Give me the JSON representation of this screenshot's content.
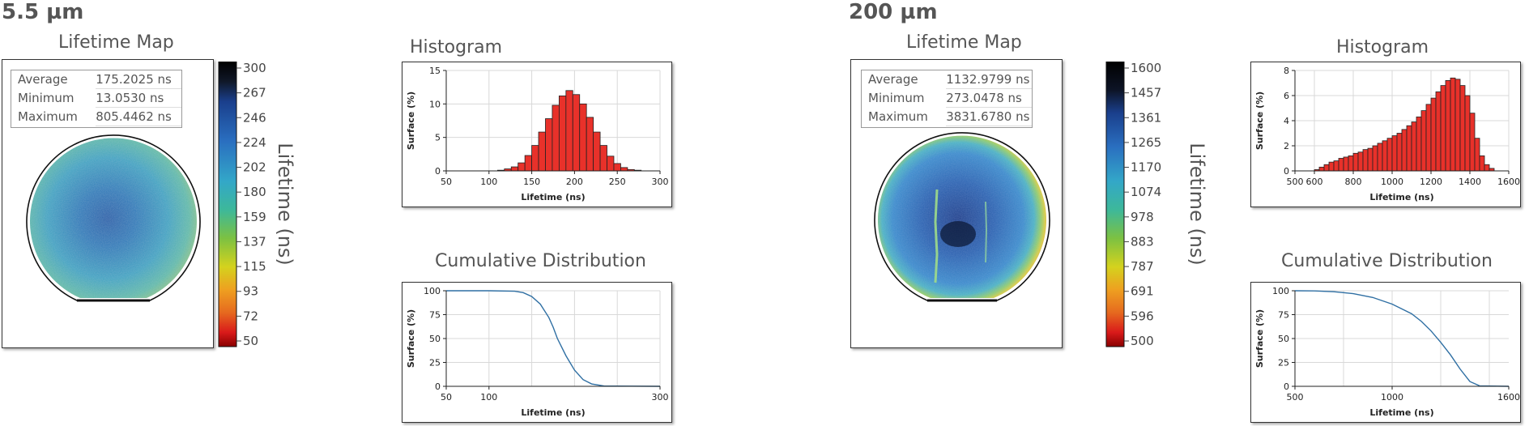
{
  "panels": [
    {
      "sample": "5.5 µm",
      "map_title": "Lifetime Map",
      "stats": [
        {
          "label": "Average",
          "value": "175.2025 ns"
        },
        {
          "label": "Minimum",
          "value": "13.0530 ns"
        },
        {
          "label": "Maximum",
          "value": "805.4462 ns"
        }
      ],
      "colorbar": {
        "ticks": [
          "300",
          "267",
          "246",
          "224",
          "202",
          "180",
          "159",
          "137",
          "115",
          "93",
          "72",
          "50"
        ],
        "label": "Lifetime (ns)"
      },
      "histogram_title": "Histogram",
      "cumulative_title": "Cumulative Distribution"
    },
    {
      "sample": "200 µm",
      "map_title": "Lifetime Map",
      "stats": [
        {
          "label": "Average",
          "value": "1132.9799 ns"
        },
        {
          "label": "Minimum",
          "value": "273.0478 ns"
        },
        {
          "label": "Maximum",
          "value": "3831.6780 ns"
        }
      ],
      "colorbar": {
        "ticks": [
          "1600",
          "1457",
          "1361",
          "1265",
          "1170",
          "1074",
          "978",
          "883",
          "787",
          "691",
          "596",
          "500"
        ],
        "label": "Lifetime (ns)"
      },
      "histogram_title": "Histogram",
      "cumulative_title": "Cumulative Distribution"
    }
  ],
  "chart_data": [
    {
      "type": "bar",
      "id": "hist1",
      "xlabel": "Lifetime (ns)",
      "ylabel": "Surface (%)",
      "xlim": [
        50,
        300
      ],
      "ylim": [
        0,
        15
      ],
      "xticks": [
        50,
        100,
        150,
        200,
        250,
        300
      ],
      "yticks": [
        0,
        5,
        10,
        15
      ],
      "bin_width": 8,
      "bin_start": 110,
      "values": [
        0.1,
        0.3,
        0.6,
        1.2,
        2.3,
        3.8,
        5.8,
        7.8,
        9.8,
        11.2,
        12.0,
        11.4,
        10.0,
        8.0,
        5.8,
        3.8,
        2.2,
        1.1,
        0.5,
        0.2,
        0.1
      ],
      "bar_color": "#e8312a"
    },
    {
      "type": "line",
      "id": "cum1",
      "xlabel": "Lifetime (ns)",
      "ylabel": "Surface (%)",
      "xlim": [
        50,
        300
      ],
      "ylim": [
        0,
        100
      ],
      "xticks": [
        50,
        100,
        300
      ],
      "xgrid": [
        50,
        100,
        150,
        200,
        250,
        300
      ],
      "yticks": [
        0,
        25,
        50,
        75,
        100
      ],
      "x": [
        50,
        100,
        130,
        140,
        150,
        160,
        170,
        175,
        180,
        190,
        200,
        210,
        220,
        235,
        300
      ],
      "y": [
        100,
        100,
        99.5,
        98,
        94,
        86,
        72,
        62,
        50,
        32,
        17,
        7,
        2.5,
        0.3,
        0
      ],
      "line_color": "#2f6fa3"
    },
    {
      "type": "bar",
      "id": "hist2",
      "xlabel": "Lifetime (ns)",
      "ylabel": "Surface (%)",
      "xlim": [
        500,
        1600
      ],
      "ylim": [
        0,
        8
      ],
      "xticks": [
        500,
        600,
        800,
        1000,
        1200,
        1400,
        1600
      ],
      "yticks": [
        0,
        2,
        4,
        6,
        8
      ],
      "bin_width": 25,
      "bin_start": 600,
      "values": [
        0.1,
        0.3,
        0.5,
        0.7,
        0.8,
        1.0,
        1.1,
        1.2,
        1.4,
        1.5,
        1.7,
        1.8,
        2.0,
        2.2,
        2.4,
        2.6,
        2.8,
        3.0,
        3.3,
        3.6,
        3.9,
        4.3,
        4.8,
        5.3,
        5.8,
        6.3,
        6.8,
        7.2,
        7.4,
        7.3,
        6.8,
        6.0,
        4.6,
        2.6,
        1.2,
        0.5,
        0.2
      ],
      "bar_color": "#e8312a"
    },
    {
      "type": "line",
      "id": "cum2",
      "xlabel": "Lifetime (ns)",
      "ylabel": "Surface (%)",
      "xlim": [
        500,
        1600
      ],
      "ylim": [
        0,
        100
      ],
      "xticks": [
        500,
        1000,
        1600
      ],
      "xgrid": [
        500,
        750,
        1000,
        1250,
        1500
      ],
      "yticks": [
        0,
        25,
        50,
        75,
        100
      ],
      "x": [
        500,
        600,
        700,
        800,
        900,
        1000,
        1100,
        1150,
        1200,
        1250,
        1300,
        1350,
        1400,
        1450,
        1600
      ],
      "y": [
        100,
        99.8,
        99,
        97,
        93,
        86,
        76,
        68,
        58,
        46,
        33,
        18,
        5,
        0.5,
        0
      ],
      "line_color": "#2f6fa3"
    }
  ]
}
